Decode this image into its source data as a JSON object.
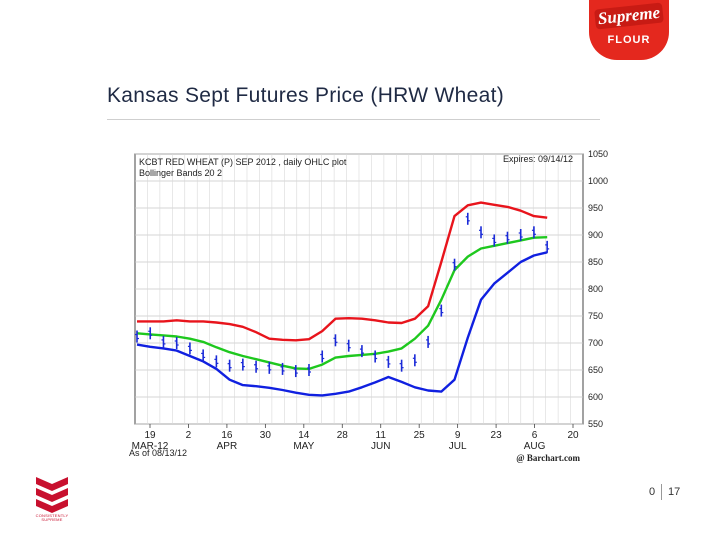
{
  "brand": {
    "name": "Supreme",
    "sub": "FLOUR",
    "tagline": "CONSISTENTLY SUPREME",
    "color": "#e4281e"
  },
  "slide": {
    "title": "Kansas Sept Futures Price (HRW Wheat)",
    "page_left": "0",
    "page_right": "17"
  },
  "chart_data": {
    "type": "line",
    "title": "KCBT RED WHEAT (P) SEP 2012 , daily OHLC plot",
    "subtitle": "Bollinger Bands  20  2",
    "expires": "Expires: 09/14/12",
    "as_of": "As of 08/13/12",
    "credit": "@ Barchart.com",
    "ylim": [
      550,
      1050
    ],
    "yticks": [
      550,
      600,
      650,
      700,
      750,
      800,
      850,
      900,
      950,
      1000,
      1050
    ],
    "xticks": [
      {
        "day": "19",
        "month": "MAR-12"
      },
      {
        "day": "2",
        "month": ""
      },
      {
        "day": "16",
        "month": "APR"
      },
      {
        "day": "30",
        "month": ""
      },
      {
        "day": "14",
        "month": "MAY"
      },
      {
        "day": "28",
        "month": ""
      },
      {
        "day": "11",
        "month": "JUN"
      },
      {
        "day": "25",
        "month": ""
      },
      {
        "day": "9",
        "month": "JUL"
      },
      {
        "day": "23",
        "month": ""
      },
      {
        "day": "6",
        "month": "AUG"
      },
      {
        "day": "20",
        "month": ""
      }
    ],
    "colors": {
      "upper": "#e8141c",
      "middle": "#1ec81e",
      "lower": "#1020e0",
      "price": "#1a2ad8"
    },
    "series": [
      {
        "key": "upper",
        "values": [
          740,
          740,
          740,
          742,
          740,
          740,
          738,
          735,
          730,
          720,
          708,
          706,
          705,
          707,
          722,
          745,
          746,
          745,
          742,
          738,
          737,
          745,
          768,
          850,
          935,
          955,
          960,
          956,
          952,
          945,
          935,
          932
        ]
      },
      {
        "key": "middle",
        "values": [
          718,
          716,
          714,
          712,
          708,
          702,
          692,
          683,
          676,
          670,
          664,
          658,
          653,
          652,
          660,
          673,
          676,
          678,
          680,
          684,
          690,
          708,
          732,
          780,
          835,
          860,
          875,
          880,
          885,
          890,
          895,
          896
        ]
      },
      {
        "key": "lower",
        "values": [
          697,
          693,
          690,
          686,
          676,
          666,
          652,
          632,
          622,
          620,
          617,
          613,
          608,
          604,
          603,
          606,
          610,
          618,
          627,
          637,
          628,
          618,
          612,
          610,
          632,
          710,
          780,
          810,
          830,
          850,
          862,
          868
        ]
      },
      {
        "key": "price",
        "values": [
          712,
          718,
          702,
          700,
          690,
          677,
          666,
          658,
          660,
          656,
          654,
          652,
          648,
          650,
          675,
          705,
          695,
          685,
          675,
          665,
          658,
          668,
          702,
          760,
          845,
          930,
          905,
          890,
          895,
          900,
          905,
          878
        ]
      }
    ]
  }
}
